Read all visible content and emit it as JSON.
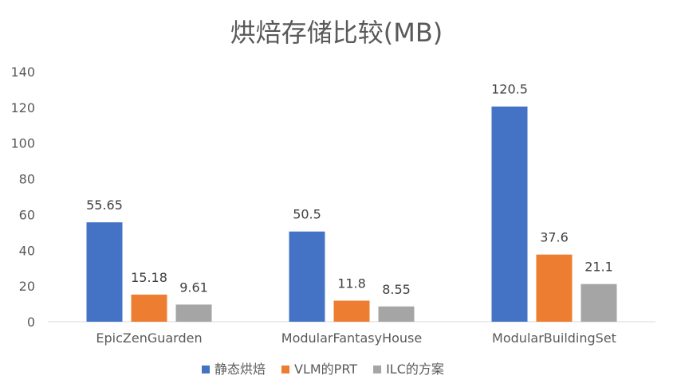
{
  "chart_data": {
    "type": "bar",
    "title": "烘焙存储比较(MB)",
    "categories": [
      "EpicZenGuarden",
      "ModularFantasyHouse",
      "ModularBuildingSet"
    ],
    "series": [
      {
        "name": "静态烘焙",
        "values": [
          55.65,
          50.5,
          120.5
        ],
        "labels": [
          "55.65",
          "50.5",
          "120.5"
        ],
        "color": "#4472C4"
      },
      {
        "name": "VLM的PRT",
        "values": [
          15.18,
          11.8,
          37.6
        ],
        "labels": [
          "15.18",
          "11.8",
          "37.6"
        ],
        "color": "#ED7D31"
      },
      {
        "name": "ILC的方案",
        "values": [
          9.61,
          8.55,
          21.1
        ],
        "labels": [
          "9.61",
          "8.55",
          "21.1"
        ],
        "color": "#A5A5A5"
      }
    ],
    "ylim": [
      0,
      140
    ],
    "yticks": [
      "0",
      "20",
      "40",
      "60",
      "80",
      "100",
      "120",
      "140"
    ],
    "grid": false,
    "legend_position": "bottom"
  }
}
